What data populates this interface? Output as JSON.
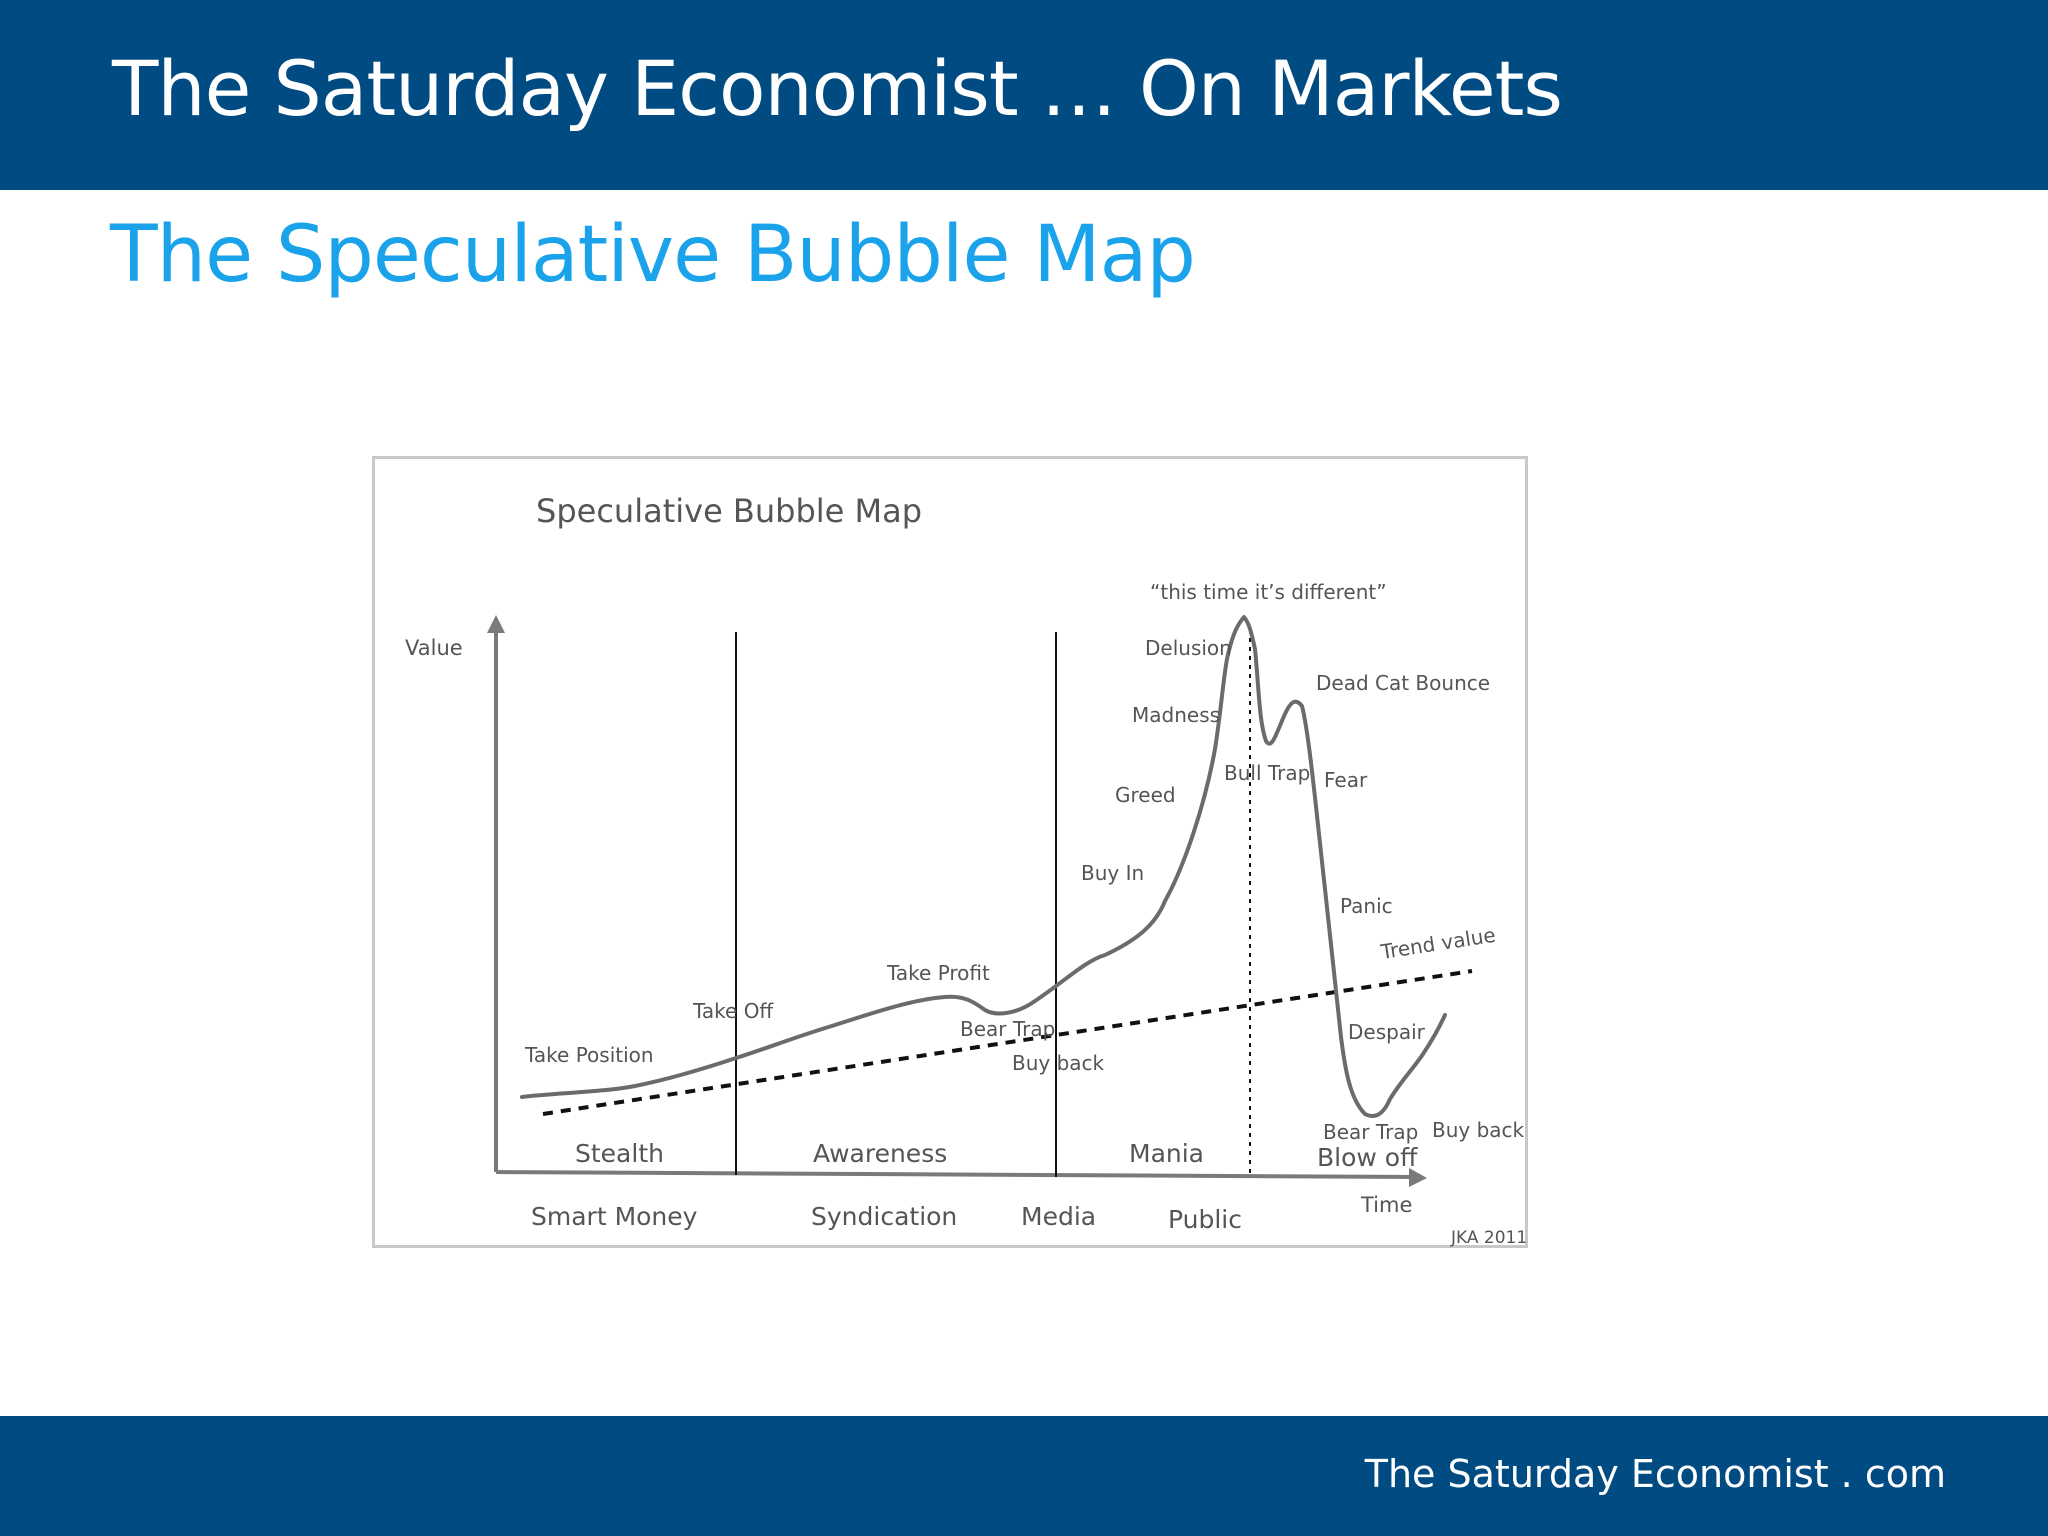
{
  "header": {
    "title": "The Saturday Economist … On Markets"
  },
  "slide": {
    "subtitle": "The Speculative Bubble Map"
  },
  "footer": {
    "text": "The Saturday Economist . com"
  },
  "diagram": {
    "title": "Speculative Bubble Map",
    "y_axis_label": "Value",
    "x_axis_label": "Time",
    "quote": "“this time it’s different”",
    "credit": "JKA 2011",
    "trend_label": "Trend value",
    "phases": [
      "Stealth",
      "Awareness",
      "Mania",
      "Blow off"
    ],
    "participants": [
      "Smart Money",
      "Syndication",
      "Media",
      "Public"
    ],
    "stage_labels": {
      "take_position": "Take Position",
      "take_off": "Take Off",
      "take_profit": "Take Profit",
      "bear_trap_1": "Bear Trap",
      "buy_back_1": "Buy back",
      "buy_in": "Buy In",
      "greed": "Greed",
      "madness": "Madness",
      "delusion": "Delusion",
      "bull_trap": "Bull Trap",
      "dead_cat_bounce": "Dead Cat Bounce",
      "fear": "Fear",
      "panic": "Panic",
      "despair": "Despair",
      "bear_trap_2": "Bear Trap",
      "buy_back_2": "Buy back"
    },
    "colors": {
      "curve": "#6b6b6b",
      "axis": "#7a7a7a",
      "divider": "#111111",
      "trend": "#111111"
    }
  }
}
